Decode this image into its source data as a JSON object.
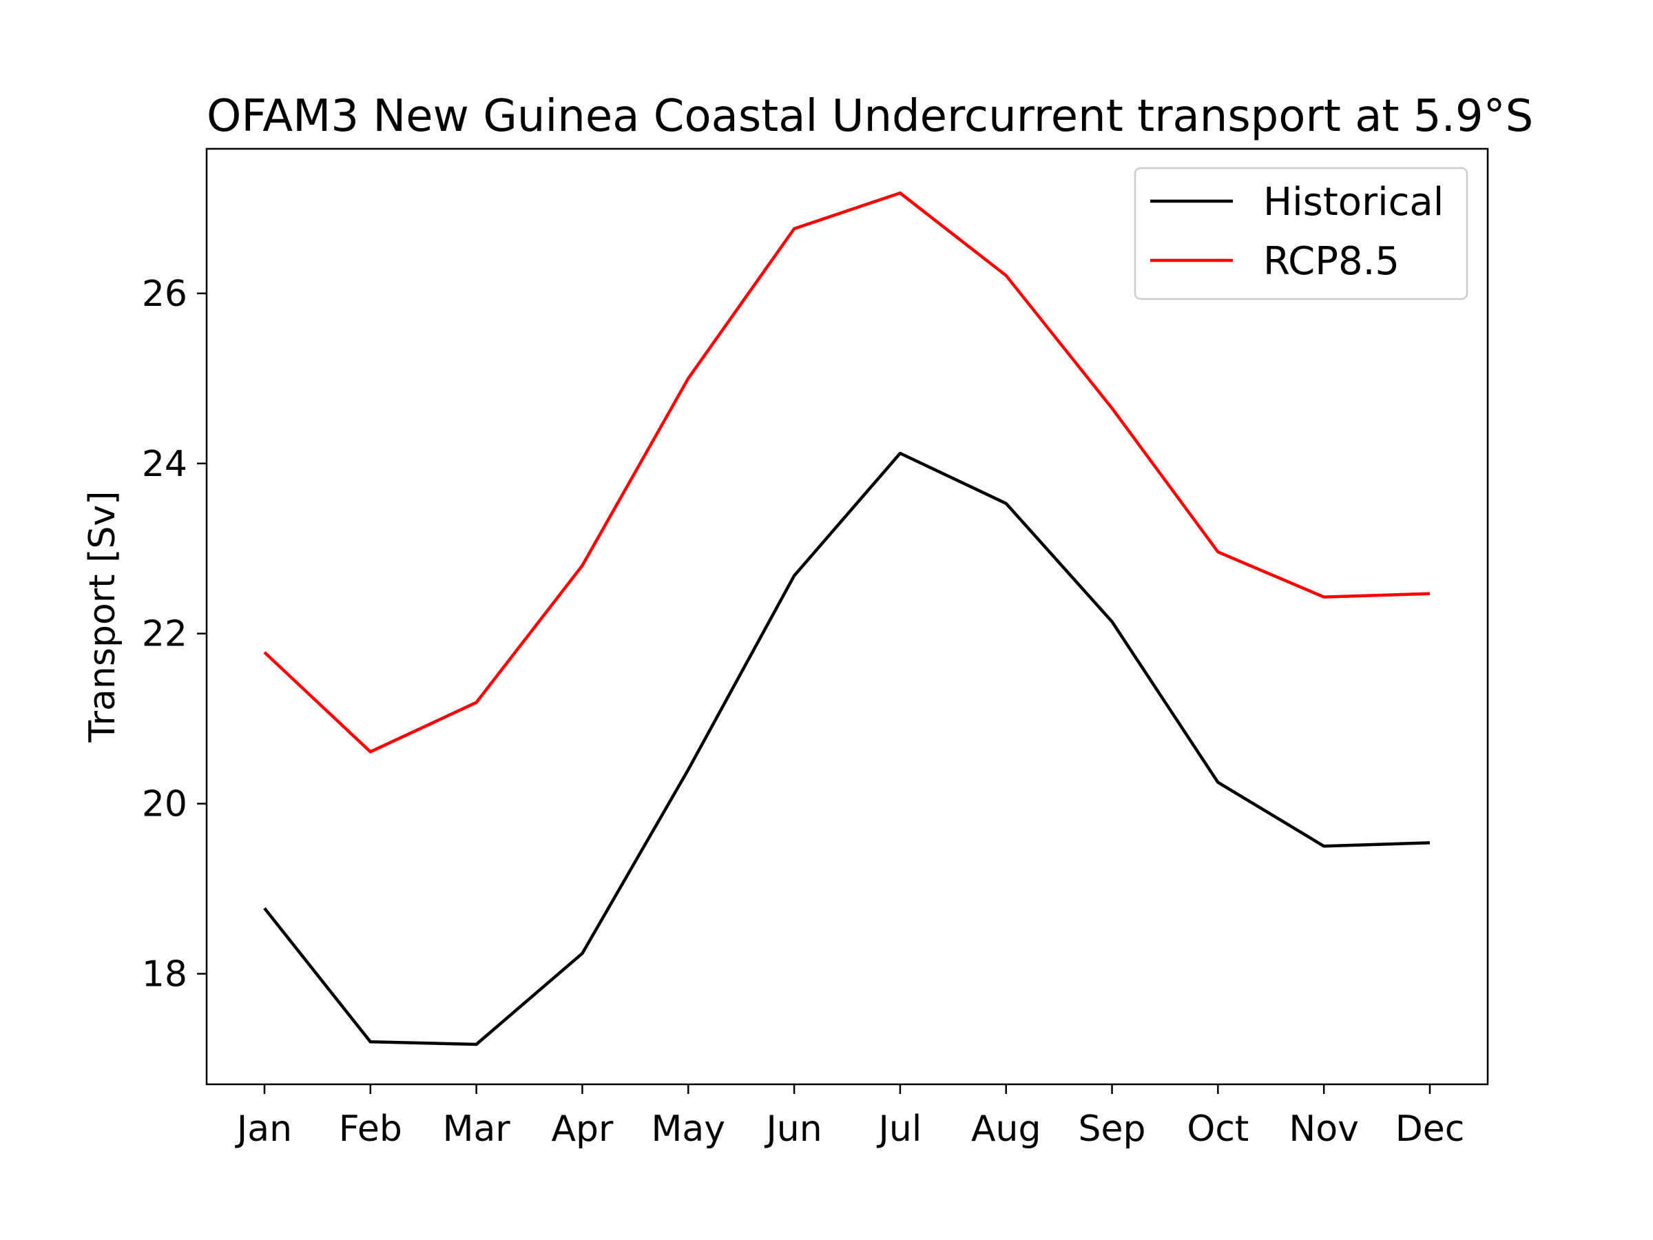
{
  "chart_data": {
    "type": "line",
    "title": "OFAM3 New Guinea Coastal Undercurrent transport at 5.9°S",
    "xlabel": "",
    "ylabel": "Transport [Sv]",
    "categories": [
      "Jan",
      "Feb",
      "Mar",
      "Apr",
      "May",
      "Jun",
      "Jul",
      "Aug",
      "Sep",
      "Oct",
      "Nov",
      "Dec"
    ],
    "ylim": [
      16.7,
      27.7
    ],
    "yticks": [
      18,
      20,
      22,
      24,
      26
    ],
    "grid": false,
    "legend_position": "top-right",
    "series": [
      {
        "name": "Historical",
        "color": "#000000",
        "values": [
          18.77,
          17.2,
          17.17,
          18.24,
          20.4,
          22.68,
          24.12,
          23.53,
          22.14,
          20.25,
          19.5,
          19.54
        ]
      },
      {
        "name": "RCP8.5",
        "color": "#ff0000",
        "values": [
          21.78,
          20.61,
          21.19,
          22.8,
          25.0,
          26.76,
          27.18,
          26.21,
          24.65,
          22.96,
          22.43,
          22.47
        ]
      }
    ]
  }
}
